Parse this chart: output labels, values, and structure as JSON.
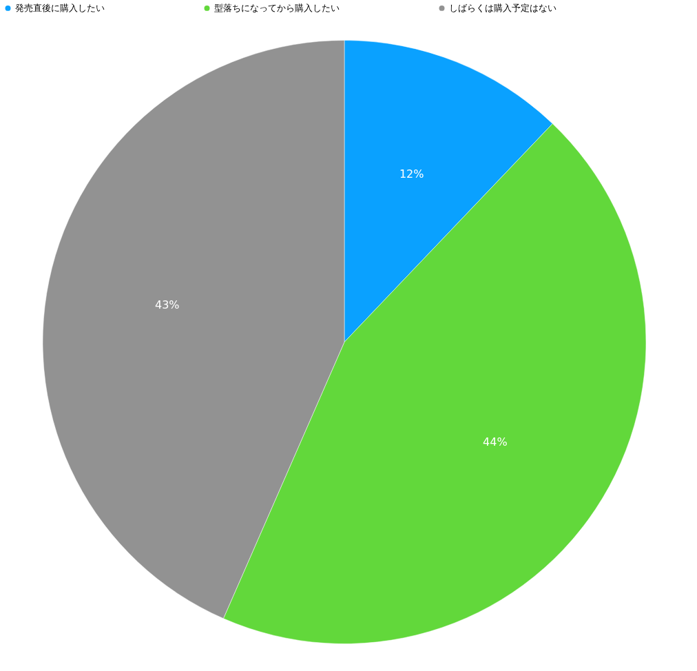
{
  "chart_data": {
    "type": "pie",
    "categories": [
      "発売直後に購入したい",
      "型落ちになってから購入したい",
      "しばらくは購入予定はない"
    ],
    "values": [
      12,
      44,
      43
    ],
    "value_labels": [
      "12%",
      "44%",
      "43%"
    ],
    "colors": [
      "#0aa1ff",
      "#62d83b",
      "#929292"
    ],
    "legend": "top"
  }
}
